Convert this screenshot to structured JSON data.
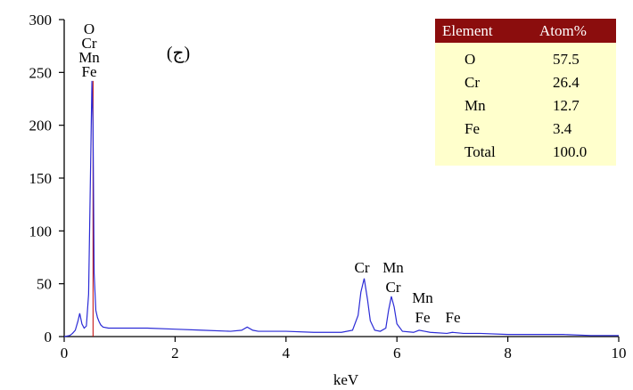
{
  "chart_data": {
    "type": "line",
    "title": "",
    "panel_label": "(ج)",
    "xlabel": "keV",
    "ylabel": "",
    "xlim": [
      0,
      10
    ],
    "ylim": [
      0,
      300
    ],
    "xticks": [
      0,
      2,
      4,
      6,
      8,
      10
    ],
    "yticks": [
      0,
      50,
      100,
      150,
      200,
      250,
      300
    ],
    "grid": false,
    "line_color": "#2b2bd6",
    "marker_color": "#c00000",
    "series": [
      {
        "x": [
          0.0,
          0.1,
          0.15,
          0.2,
          0.25,
          0.28,
          0.32,
          0.36,
          0.4,
          0.44,
          0.47,
          0.5,
          0.52,
          0.54,
          0.57,
          0.6,
          0.63,
          0.66,
          0.7,
          0.8,
          1.0,
          1.2,
          1.5,
          2.0,
          2.5,
          3.0,
          3.2,
          3.3,
          3.4,
          3.5,
          4.0,
          4.5,
          5.0,
          5.2,
          5.3,
          5.35,
          5.41,
          5.47,
          5.52,
          5.6,
          5.7,
          5.8,
          5.85,
          5.9,
          5.95,
          6.0,
          6.1,
          6.3,
          6.4,
          6.5,
          6.6,
          6.9,
          7.0,
          7.2,
          7.5,
          8.0,
          8.5,
          9.0,
          9.5,
          10.0
        ],
        "y": [
          0,
          1,
          3,
          6,
          15,
          22,
          12,
          8,
          10,
          40,
          140,
          242,
          200,
          60,
          25,
          18,
          14,
          11,
          9,
          8,
          8,
          8,
          8,
          7,
          6,
          5,
          6,
          9,
          6,
          5,
          5,
          4,
          4,
          6,
          20,
          42,
          55,
          35,
          15,
          6,
          5,
          8,
          25,
          38,
          28,
          12,
          5,
          4,
          6,
          5,
          4,
          3,
          4,
          3,
          3,
          2,
          2,
          2,
          1,
          1
        ]
      }
    ],
    "peak_markers": [
      0.52
    ],
    "peak_labels": [
      {
        "x": 0.52,
        "labels": [
          "O",
          "Cr",
          "Mn",
          "Fe"
        ]
      },
      {
        "x": 5.41,
        "labels": [
          "Cr"
        ]
      },
      {
        "x": 5.9,
        "labels": [
          "Mn",
          "Cr"
        ]
      },
      {
        "x": 6.4,
        "labels": [
          "Mn",
          "Fe"
        ]
      },
      {
        "x": 7.06,
        "labels": [
          "Fe"
        ]
      }
    ]
  },
  "table": {
    "header": [
      "Element",
      "Atom%"
    ],
    "rows": [
      [
        "O",
        "57.5"
      ],
      [
        "Cr",
        "26.4"
      ],
      [
        "Mn",
        "12.7"
      ],
      [
        "Fe",
        "3.4"
      ],
      [
        "Total",
        "100.0"
      ]
    ],
    "header_bg": "#8b0d0d",
    "body_bg": "#ffffcc"
  }
}
